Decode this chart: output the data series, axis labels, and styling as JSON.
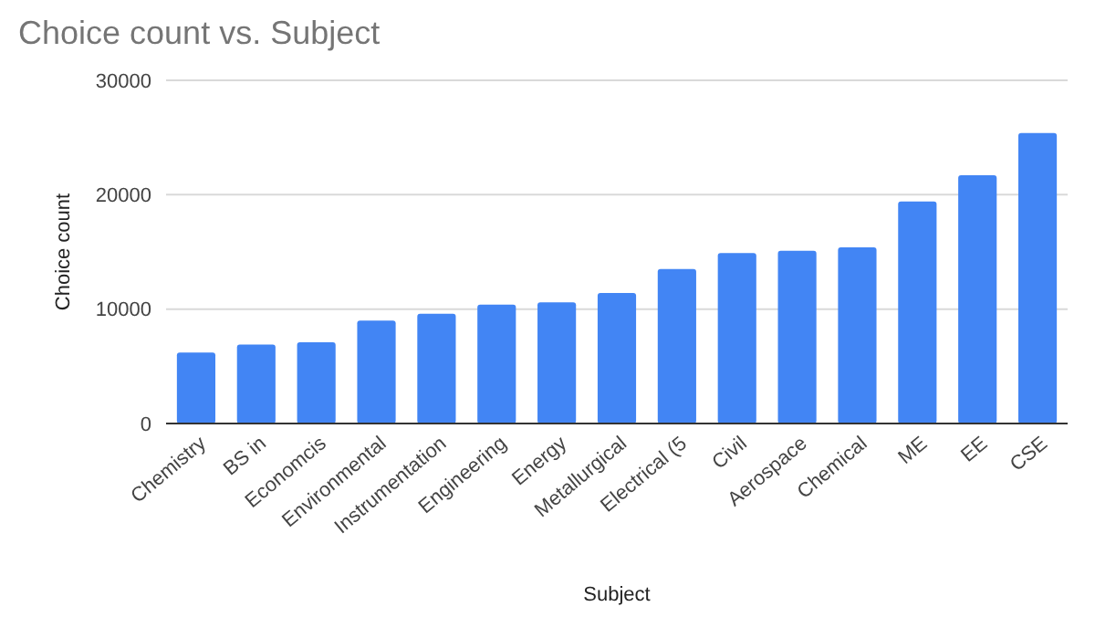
{
  "chart_data": {
    "type": "bar",
    "title": "Choice count vs. Subject",
    "xlabel": "Subject",
    "ylabel": "Choice count",
    "categories": [
      "Chemistry",
      "BS in",
      "Economcis",
      "Environmental",
      "Instrumentation",
      "Engineering",
      "Energy",
      "Metallurgical",
      "Electrical (5",
      "Civil",
      "Aerospace",
      "Chemical",
      "ME",
      "EE",
      "CSE"
    ],
    "values": [
      6200,
      6900,
      7100,
      9000,
      9600,
      10400,
      10600,
      11400,
      13500,
      14900,
      15100,
      15400,
      19400,
      21700,
      25400
    ],
    "color": "#4285f4",
    "ylim": [
      0,
      30000
    ],
    "yticks": [
      0,
      10000,
      20000,
      30000
    ],
    "grid": "y"
  }
}
